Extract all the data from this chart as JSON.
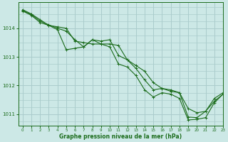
{
  "title": "Graphe pression niveau de la mer (hPa)",
  "bg_color": "#cce8e6",
  "grid_color": "#aacccc",
  "line_color": "#1a6b1a",
  "xlim": [
    -0.5,
    23
  ],
  "ylim": [
    1010.6,
    1014.9
  ],
  "yticks": [
    1011,
    1012,
    1013,
    1014
  ],
  "xticks": [
    0,
    1,
    2,
    3,
    4,
    5,
    6,
    7,
    8,
    9,
    10,
    11,
    12,
    13,
    14,
    15,
    16,
    17,
    18,
    19,
    20,
    21,
    22,
    23
  ],
  "series": [
    [
      1014.6,
      1014.45,
      1014.2,
      1014.1,
      1014.05,
      1014.0,
      1013.55,
      1013.5,
      1013.45,
      1013.45,
      1013.45,
      1013.4,
      1012.9,
      1012.7,
      1012.5,
      1012.1,
      1011.9,
      1011.85,
      1011.75,
      1011.2,
      1011.05,
      1011.1,
      1011.55,
      1011.75
    ],
    [
      1014.65,
      1014.5,
      1014.3,
      1014.1,
      1013.95,
      1013.25,
      1013.3,
      1013.35,
      1013.6,
      1013.55,
      1013.6,
      1013.05,
      1012.9,
      1012.6,
      1012.2,
      1011.85,
      1011.9,
      1011.8,
      1011.75,
      1010.9,
      1010.88,
      1011.1,
      1011.45,
      1011.7
    ],
    [
      1014.62,
      1014.48,
      1014.25,
      1014.12,
      1014.0,
      1013.9,
      1013.6,
      1013.35,
      1013.6,
      1013.45,
      1013.35,
      1012.75,
      1012.65,
      1012.35,
      1011.85,
      1011.6,
      1011.75,
      1011.7,
      1011.55,
      1010.8,
      1010.82,
      1010.88,
      1011.4,
      1011.7
    ]
  ]
}
